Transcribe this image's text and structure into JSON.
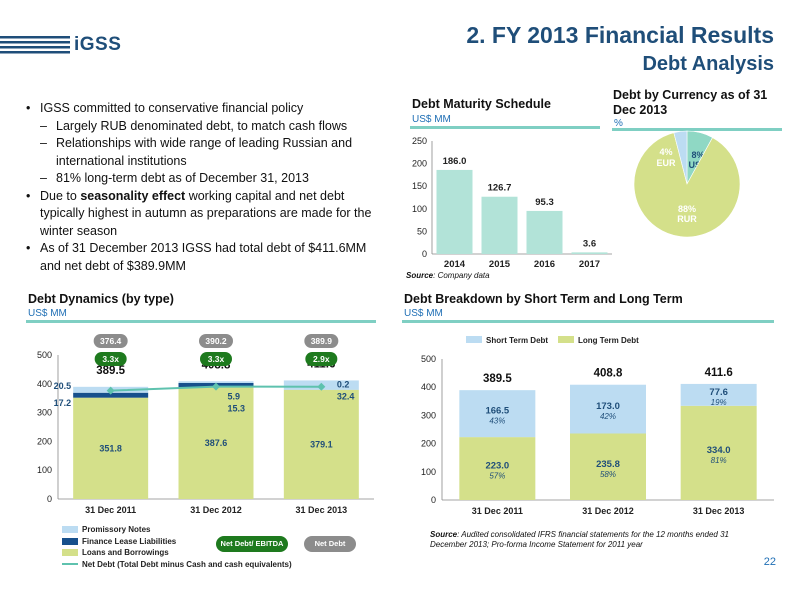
{
  "header": {
    "logo_text": "iGSS",
    "title": "2. FY 2013 Financial Results",
    "subtitle": "Debt Analysis",
    "page_number": "22"
  },
  "colors": {
    "navy": "#1f4e79",
    "teal_bar": "#b2e3d8",
    "light_blue": "#bcdcf2",
    "lime": "#d4e08a",
    "dark_green": "#1e7a1e",
    "net_debt_line": "#5ec2ae",
    "finance_lease": "#17508c",
    "grey_badge": "#8c8c8c"
  },
  "bullets": [
    {
      "type": "main",
      "marker": "•",
      "text": "IGSS committed to conservative financial policy"
    },
    {
      "type": "sub",
      "marker": "–",
      "text": "Largely RUB denominated debt, to match cash flows"
    },
    {
      "type": "sub",
      "marker": "–",
      "text": "Relationships with wide range of leading Russian and international institutions"
    },
    {
      "type": "sub",
      "marker": "–",
      "text": "81% long-term debt as of December 31, 2013"
    },
    {
      "type": "main",
      "marker": "•",
      "text_before": "Due to ",
      "text_bold": "seasonality effect",
      "text_after": " working capital and net debt typically highest in autumn as preparations are made for the winter season"
    },
    {
      "type": "main",
      "marker": "•",
      "text": "As of 31 December 2013 IGSS had total debt of $411.6MM and net debt of $389.9MM"
    }
  ],
  "maturity": {
    "title": "Debt Maturity Schedule",
    "unit": "US$ MM",
    "source_label": "Source",
    "source_text": ": Company data"
  },
  "currency": {
    "title": "Debt by Currency as of 31 Dec 2013",
    "unit": "%"
  },
  "dynamics": {
    "title": "Debt Dynamics (by type)",
    "unit": "US$ MM",
    "legend": {
      "promissory": "Promissory Notes",
      "finance_lease": "Finance Lease Liabilities",
      "loans": "Loans and Borrowings",
      "net_debt": "Net Debt (Total Debt minus Cash and cash equivalents)",
      "badge_ratio": "Net Debt/ EBITDA",
      "badge_net": "Net Debt"
    }
  },
  "breakdown": {
    "title": "Debt Breakdown by Short Term and Long Term",
    "unit": "US$ MM",
    "source_label": "Source",
    "source_text": ":  Audited consolidated IFRS financial statements for the 12 months ended 31 December 2013; Pro-forma Income Statement for 2011 year"
  },
  "chart_data": [
    {
      "id": "maturity",
      "type": "bar",
      "title": "Debt Maturity Schedule",
      "ylabel": "US$ MM",
      "categories": [
        "2014",
        "2015",
        "2016",
        "2017"
      ],
      "values": [
        186.0,
        126.7,
        95.3,
        3.6
      ],
      "value_labels": [
        "186.0",
        "126.7",
        "95.3",
        "3.6"
      ],
      "ylim": [
        0,
        250
      ],
      "yticks": [
        0,
        50,
        100,
        150,
        200,
        250
      ],
      "grid": false
    },
    {
      "id": "currency",
      "type": "pie",
      "title": "Debt by Currency as of 31 Dec 2013",
      "slices": [
        {
          "name": "USD",
          "value": 8,
          "label": "8%",
          "color": "#8fd8c4"
        },
        {
          "name": "RUR",
          "value": 88,
          "label": "88%",
          "color": "#d4e08a"
        },
        {
          "name": "EUR",
          "value": 4,
          "label": "4%",
          "color": "#bcdcf2"
        }
      ]
    },
    {
      "id": "dynamics",
      "type": "bar",
      "stacked": true,
      "title": "Debt Dynamics (by type)",
      "ylabel": "US$ MM",
      "categories": [
        "31 Dec 2011",
        "31 Dec 2012",
        "31 Dec 2013"
      ],
      "ylim": [
        0,
        500
      ],
      "yticks": [
        0,
        100,
        200,
        300,
        400,
        500
      ],
      "series": [
        {
          "name": "Loans and Borrowings",
          "values": [
            351.8,
            387.6,
            379.1
          ],
          "labels": [
            "351.8",
            "387.6",
            "379.1"
          ]
        },
        {
          "name": "Finance Lease Liabilities",
          "values": [
            17.2,
            15.3,
            0.2
          ],
          "labels": [
            "17.2",
            "15.3",
            "0.2"
          ]
        },
        {
          "name": "Promissory Notes",
          "values": [
            20.5,
            5.9,
            32.4
          ],
          "labels": [
            "20.5",
            "5.9",
            "32.4"
          ]
        }
      ],
      "totals": [
        "389.5",
        "408.8",
        "411.6"
      ],
      "net_debt": {
        "name": "Net Debt (Total Debt minus Cash and cash equivalents)",
        "values": [
          376.4,
          390.2,
          389.9
        ],
        "labels": [
          "376.4",
          "390.2",
          "389.9"
        ]
      },
      "net_debt_ebitda": [
        "3.3x",
        "3.3x",
        "2.9x"
      ],
      "legend_position": "bottom"
    },
    {
      "id": "breakdown",
      "type": "bar",
      "stacked": true,
      "title": "Debt Breakdown by Short Term and Long Term",
      "ylabel": "US$ MM",
      "categories": [
        "31 Dec 2011",
        "31 Dec 2012",
        "31 Dec 2013"
      ],
      "ylim": [
        0,
        500
      ],
      "yticks": [
        0,
        100,
        200,
        300,
        400,
        500
      ],
      "series": [
        {
          "name": "Long Term Debt",
          "values": [
            223.0,
            235.8,
            334.0
          ],
          "labels": [
            "223.0",
            "235.8",
            "334.0"
          ],
          "pct": [
            "57%",
            "58%",
            "81%"
          ]
        },
        {
          "name": "Short Term Debt",
          "values": [
            166.5,
            173.0,
            77.6
          ],
          "labels": [
            "166.5",
            "173.0",
            "77.6"
          ],
          "pct": [
            "43%",
            "42%",
            "19%"
          ]
        }
      ],
      "totals": [
        "389.5",
        "408.8",
        "411.6"
      ],
      "legend_position": "top"
    }
  ]
}
